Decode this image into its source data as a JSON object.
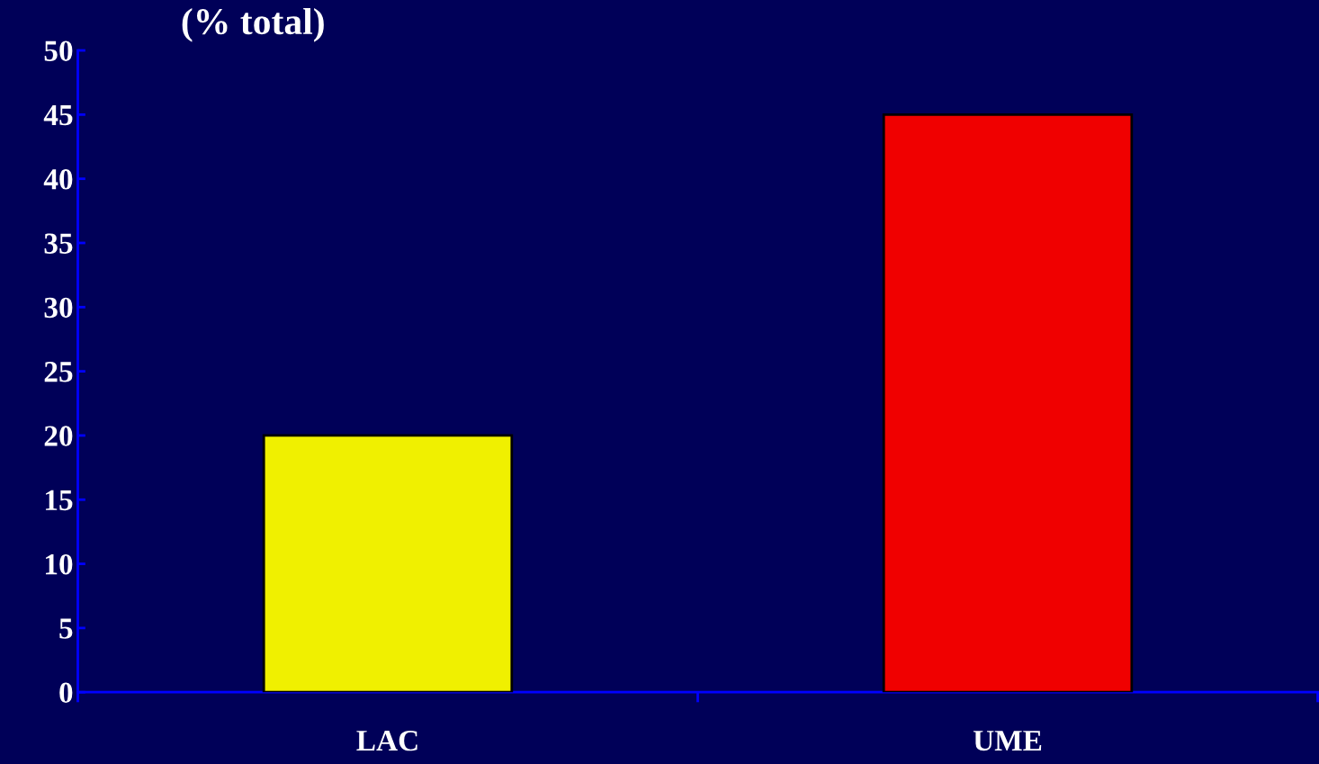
{
  "chart_data": {
    "type": "bar",
    "title": "(% total)",
    "categories": [
      "LAC",
      "UME"
    ],
    "values": [
      20,
      45
    ],
    "colors": [
      "#f0f000",
      "#f00000"
    ],
    "ylim": [
      0,
      50
    ],
    "yticks": [
      0,
      5,
      10,
      15,
      20,
      25,
      30,
      35,
      40,
      45,
      50
    ],
    "grid": false
  }
}
